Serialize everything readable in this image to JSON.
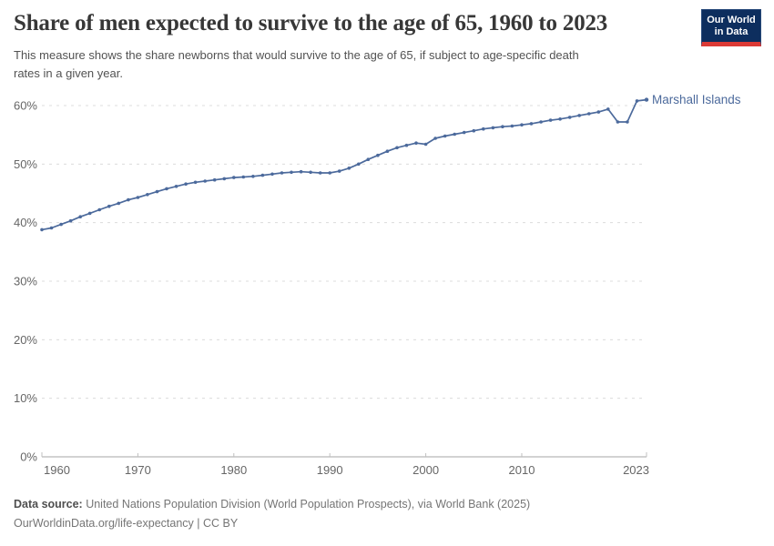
{
  "header": {
    "title": "Share of men expected to survive to the age of 65, 1960 to 2023",
    "subtitle_lines": [
      "This measure shows the share newborns that would survive to the age of 65, if subject to age-specific death",
      "rates in a given year."
    ],
    "logo": {
      "line1": "Our World",
      "line2": "in Data"
    }
  },
  "footer": {
    "datasource_label": "Data source:",
    "datasource_text": " United Nations Population Division (World Population Prospects), via World Bank (2025)",
    "license_line": "OurWorldinData.org/life-expectancy | CC BY"
  },
  "colors": {
    "line": "#4c6a9c",
    "entity_label": "#4c6a9c",
    "grid": "#dcdcdc",
    "axis": "#a5a5a5",
    "tick": "#c0c0c0",
    "tick_text": "#666666",
    "logo_bg": "#0d2e5e",
    "logo_red": "#dc3a35"
  },
  "chart_data": {
    "type": "line",
    "title": "Share of men expected to survive to the age of 65, 1960 to 2023",
    "xlabel": "",
    "ylabel": "",
    "xlim": [
      1960,
      2023
    ],
    "ylim": [
      0,
      62.5
    ],
    "grid": "horizontal-dashed",
    "legend": "inline-end-label",
    "x_ticks": [
      1960,
      1970,
      1980,
      1990,
      2000,
      2010,
      2023
    ],
    "y_tick_labels": [
      "0%",
      "10%",
      "20%",
      "30%",
      "40%",
      "50%",
      "60%"
    ],
    "series": [
      {
        "name": "Marshall Islands",
        "color": "#4c6a9c",
        "x": [
          1960,
          1961,
          1962,
          1963,
          1964,
          1965,
          1966,
          1967,
          1968,
          1969,
          1970,
          1971,
          1972,
          1973,
          1974,
          1975,
          1976,
          1977,
          1978,
          1979,
          1980,
          1981,
          1982,
          1983,
          1984,
          1985,
          1986,
          1987,
          1988,
          1989,
          1990,
          1991,
          1992,
          1993,
          1994,
          1995,
          1996,
          1997,
          1998,
          1999,
          2000,
          2001,
          2002,
          2003,
          2004,
          2005,
          2006,
          2007,
          2008,
          2009,
          2010,
          2011,
          2012,
          2013,
          2014,
          2015,
          2016,
          2017,
          2018,
          2019,
          2020,
          2021,
          2022,
          2023
        ],
        "values": [
          38.8,
          39.1,
          39.7,
          40.3,
          41.0,
          41.6,
          42.2,
          42.8,
          43.3,
          43.9,
          44.3,
          44.8,
          45.3,
          45.8,
          46.2,
          46.6,
          46.9,
          47.1,
          47.3,
          47.5,
          47.7,
          47.8,
          47.9,
          48.1,
          48.3,
          48.5,
          48.6,
          48.7,
          48.6,
          48.5,
          48.5,
          48.8,
          49.3,
          50.0,
          50.8,
          51.5,
          52.2,
          52.8,
          53.2,
          53.6,
          53.4,
          54.4,
          54.8,
          55.1,
          55.4,
          55.7,
          56.0,
          56.2,
          56.4,
          56.5,
          56.7,
          56.9,
          57.2,
          57.5,
          57.7,
          58.0,
          58.3,
          58.6,
          58.9,
          59.4,
          57.2,
          57.2,
          60.8,
          61.0
        ]
      }
    ]
  }
}
